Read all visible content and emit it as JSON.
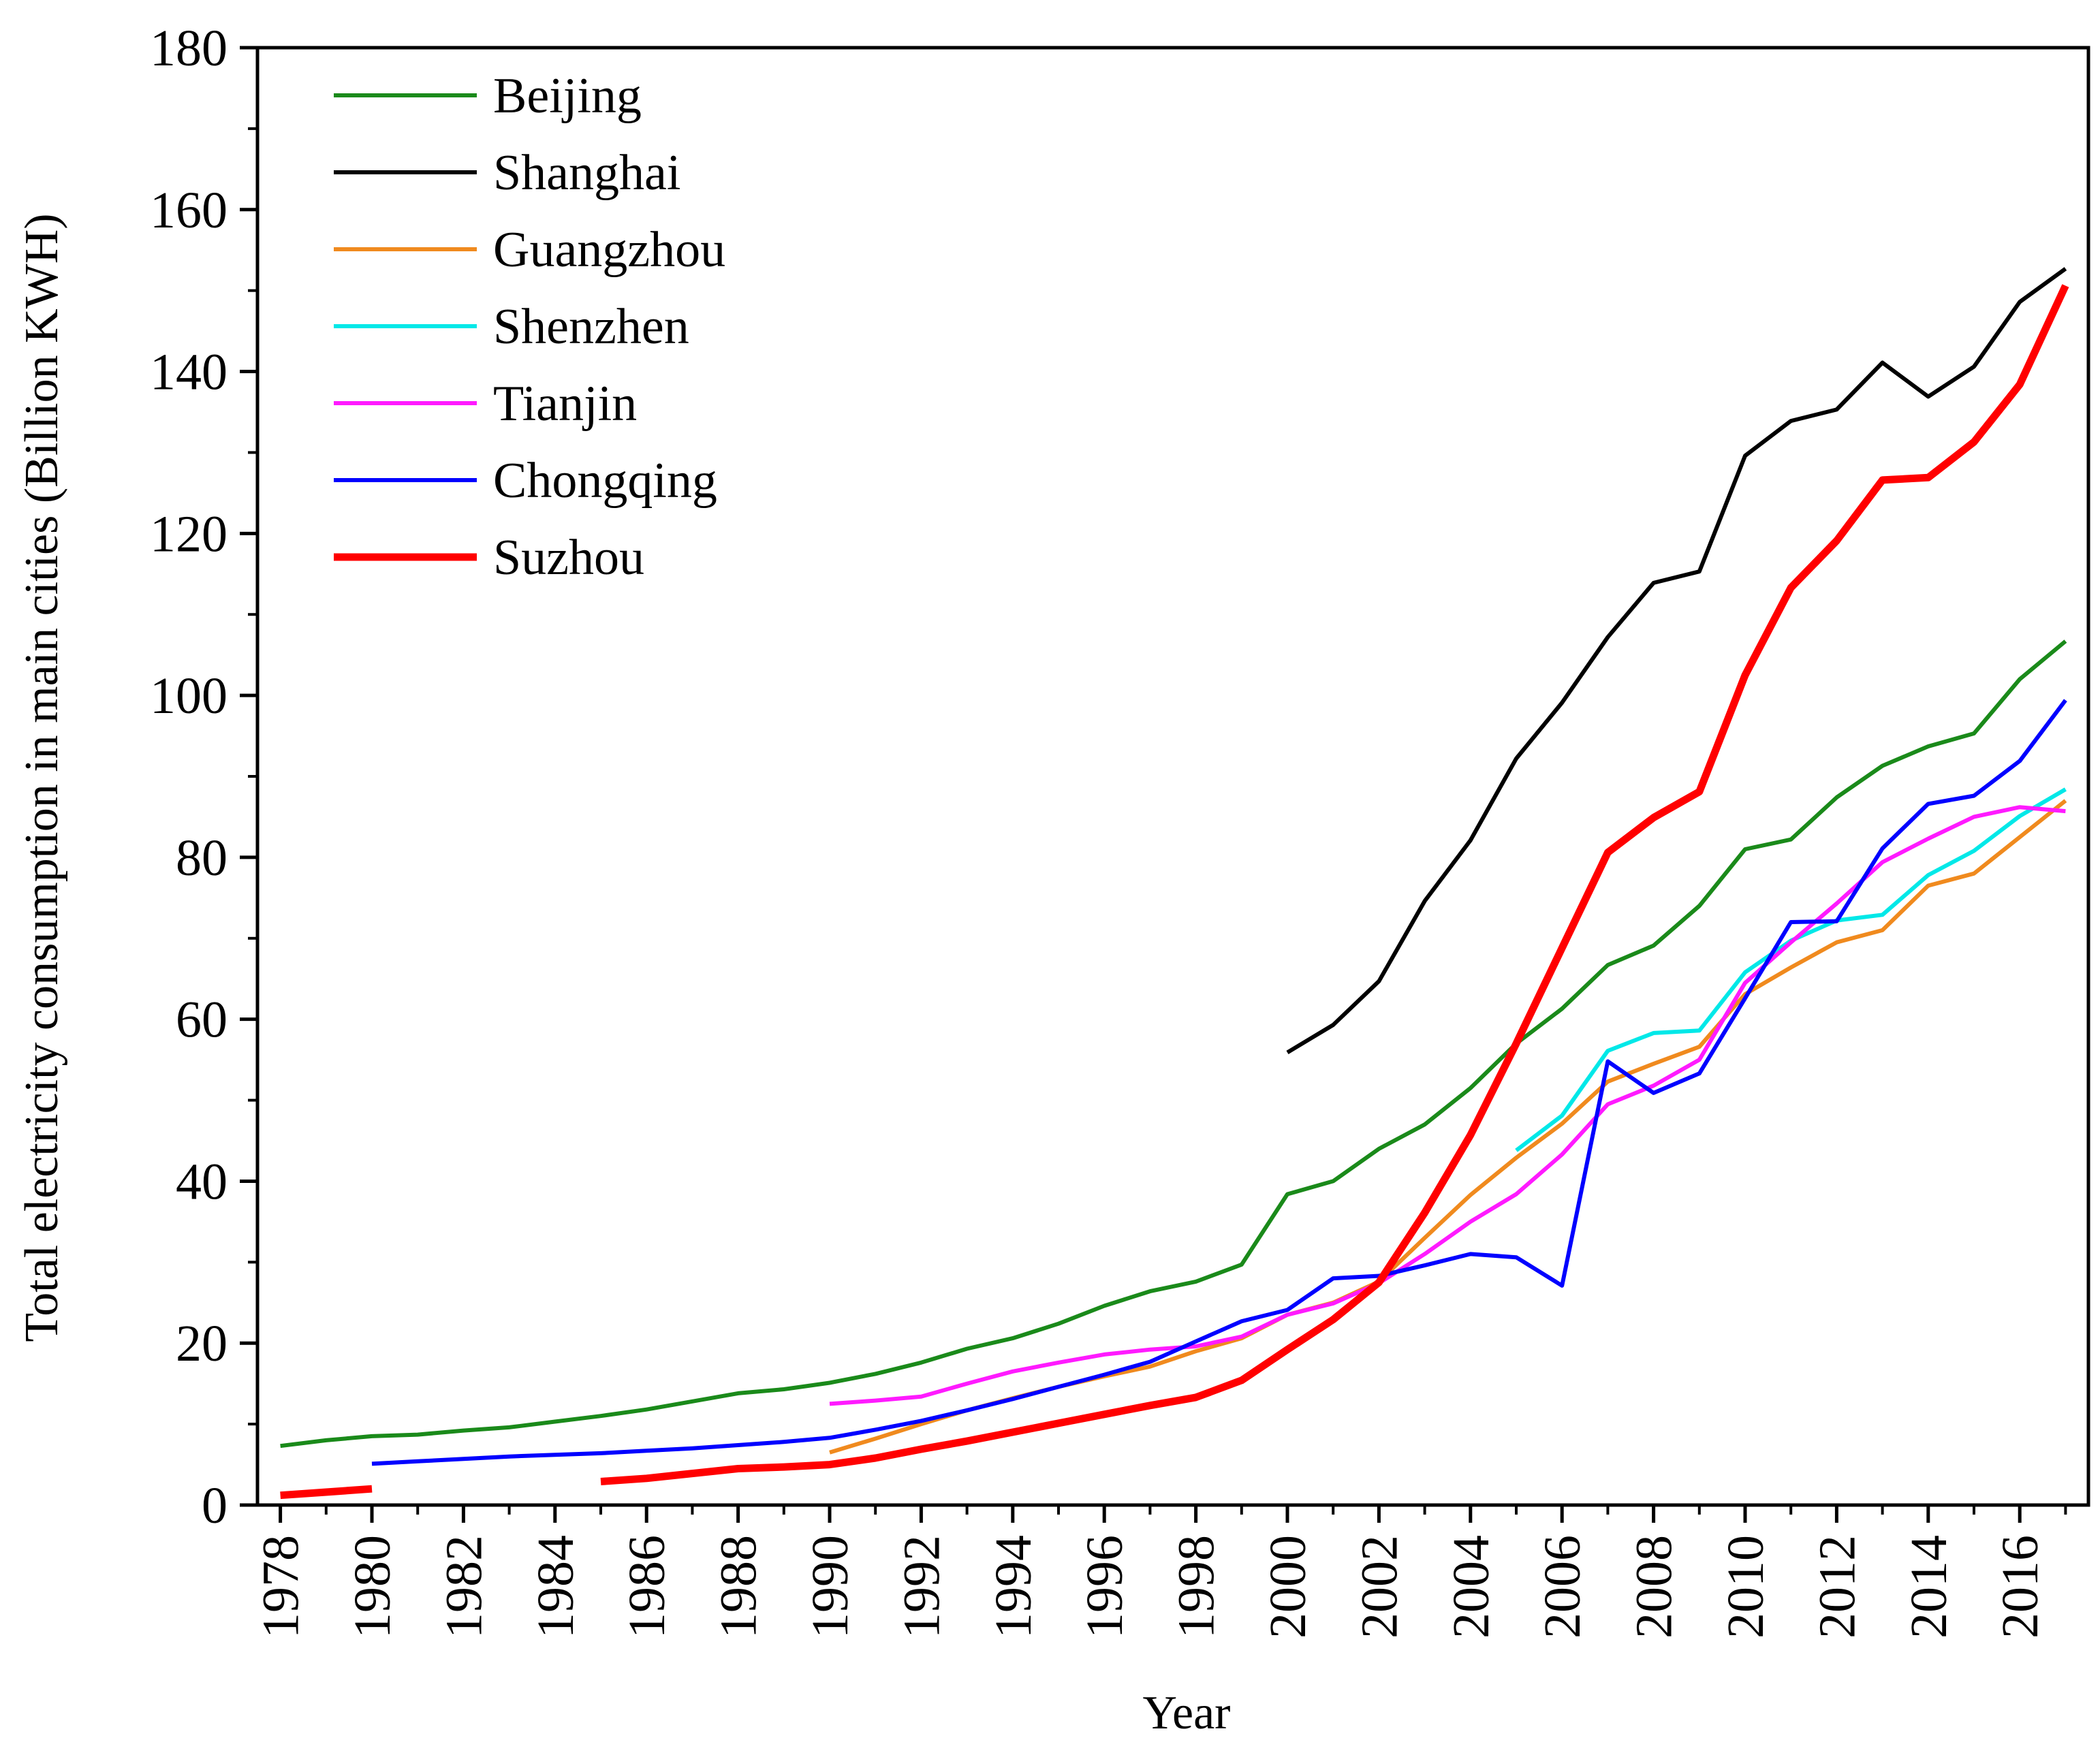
{
  "chart_data": {
    "type": "line",
    "xlabel": "Year",
    "ylabel": "Total electricity consumption in main cities (Billion KWH)",
    "xlim": [
      1977.5,
      2017.5
    ],
    "ylim": [
      0,
      180
    ],
    "x_ticks": [
      1978,
      1980,
      1982,
      1984,
      1986,
      1988,
      1990,
      1992,
      1994,
      1996,
      1998,
      2000,
      2002,
      2004,
      2006,
      2008,
      2010,
      2012,
      2014,
      2016
    ],
    "y_ticks": [
      0,
      20,
      40,
      60,
      80,
      100,
      120,
      140,
      160,
      180
    ],
    "grid": false,
    "legend_position": "top-left",
    "series": [
      {
        "name": "Beijing",
        "color": "#1a8a1a",
        "points": [
          [
            1978,
            7.3
          ],
          [
            1979,
            8.0
          ],
          [
            1980,
            8.5
          ],
          [
            1981,
            8.7
          ],
          [
            1982,
            9.2
          ],
          [
            1983,
            9.6
          ],
          [
            1984,
            10.3
          ],
          [
            1985,
            11.0
          ],
          [
            1986,
            11.8
          ],
          [
            1987,
            12.8
          ],
          [
            1988,
            13.8
          ],
          [
            1989,
            14.3
          ],
          [
            1990,
            15.1
          ],
          [
            1991,
            16.2
          ],
          [
            1992,
            17.6
          ],
          [
            1993,
            19.3
          ],
          [
            1994,
            20.6
          ],
          [
            1995,
            22.4
          ],
          [
            1996,
            24.6
          ],
          [
            1997,
            26.4
          ],
          [
            1998,
            27.6
          ],
          [
            1999,
            29.7
          ],
          [
            2000,
            38.4
          ],
          [
            2001,
            40.0
          ],
          [
            2002,
            44.0
          ],
          [
            2003,
            47.0
          ],
          [
            2004,
            51.5
          ],
          [
            2005,
            57.0
          ],
          [
            2006,
            61.3
          ],
          [
            2007,
            66.7
          ],
          [
            2008,
            69.1
          ],
          [
            2009,
            74.0
          ],
          [
            2010,
            81.0
          ],
          [
            2011,
            82.2
          ],
          [
            2012,
            87.4
          ],
          [
            2013,
            91.3
          ],
          [
            2014,
            93.7
          ],
          [
            2015,
            95.3
          ],
          [
            2016,
            102.0
          ],
          [
            2017,
            106.7
          ]
        ]
      },
      {
        "name": "Shanghai",
        "color": "#000000",
        "points": [
          [
            2000,
            55.9
          ],
          [
            2001,
            59.3
          ],
          [
            2002,
            64.7
          ],
          [
            2003,
            74.6
          ],
          [
            2004,
            82.1
          ],
          [
            2005,
            92.2
          ],
          [
            2006,
            99.1
          ],
          [
            2007,
            107.2
          ],
          [
            2008,
            113.9
          ],
          [
            2009,
            115.3
          ],
          [
            2010,
            129.6
          ],
          [
            2011,
            133.9
          ],
          [
            2012,
            135.3
          ],
          [
            2013,
            141.1
          ],
          [
            2014,
            136.9
          ],
          [
            2015,
            140.6
          ],
          [
            2016,
            148.6
          ],
          [
            2017,
            152.7
          ]
        ]
      },
      {
        "name": "Guangzhou",
        "color": "#f08a1e",
        "points": [
          [
            1990,
            6.5
          ],
          [
            1991,
            8.2
          ],
          [
            1992,
            10.0
          ],
          [
            1993,
            11.7
          ],
          [
            1994,
            13.2
          ],
          [
            1995,
            14.6
          ],
          [
            1996,
            15.9
          ],
          [
            1997,
            17.1
          ],
          [
            1998,
            19.0
          ],
          [
            1999,
            20.6
          ],
          [
            2000,
            23.5
          ],
          [
            2001,
            25.0
          ],
          [
            2002,
            27.6
          ],
          [
            2003,
            33.0
          ],
          [
            2004,
            38.3
          ],
          [
            2005,
            42.9
          ],
          [
            2006,
            47.1
          ],
          [
            2007,
            52.3
          ],
          [
            2008,
            54.5
          ],
          [
            2009,
            56.6
          ],
          [
            2010,
            63.1
          ],
          [
            2011,
            66.4
          ],
          [
            2012,
            69.5
          ],
          [
            2013,
            71.0
          ],
          [
            2014,
            76.5
          ],
          [
            2015,
            78.0
          ],
          [
            2016,
            82.5
          ],
          [
            2017,
            87.0
          ]
        ]
      },
      {
        "name": "Shenzhen",
        "color": "#00e8e8",
        "points": [
          [
            2005,
            43.8
          ],
          [
            2006,
            48.1
          ],
          [
            2007,
            56.1
          ],
          [
            2008,
            58.3
          ],
          [
            2009,
            58.6
          ],
          [
            2010,
            65.8
          ],
          [
            2011,
            69.7
          ],
          [
            2012,
            72.2
          ],
          [
            2013,
            72.9
          ],
          [
            2014,
            77.8
          ],
          [
            2015,
            80.8
          ],
          [
            2016,
            85.1
          ],
          [
            2017,
            88.4
          ]
        ]
      },
      {
        "name": "Tianjin",
        "color": "#ff1aff",
        "points": [
          [
            1990,
            12.5
          ],
          [
            1991,
            12.9
          ],
          [
            1992,
            13.4
          ],
          [
            1993,
            15.0
          ],
          [
            1994,
            16.5
          ],
          [
            1995,
            17.6
          ],
          [
            1996,
            18.6
          ],
          [
            1997,
            19.2
          ],
          [
            1998,
            19.6
          ],
          [
            1999,
            20.8
          ],
          [
            2000,
            23.5
          ],
          [
            2001,
            24.9
          ],
          [
            2002,
            27.4
          ],
          [
            2003,
            31.0
          ],
          [
            2004,
            35.0
          ],
          [
            2005,
            38.4
          ],
          [
            2006,
            43.3
          ],
          [
            2007,
            49.5
          ],
          [
            2008,
            51.8
          ],
          [
            2009,
            55.0
          ],
          [
            2010,
            64.5
          ],
          [
            2011,
            69.5
          ],
          [
            2012,
            74.3
          ],
          [
            2013,
            79.4
          ],
          [
            2014,
            82.3
          ],
          [
            2015,
            85.0
          ],
          [
            2016,
            86.2
          ],
          [
            2017,
            85.7
          ]
        ]
      },
      {
        "name": "Chongqing",
        "color": "#0000ff",
        "points": [
          [
            1980,
            5.1
          ],
          [
            1981,
            5.4
          ],
          [
            1982,
            5.7
          ],
          [
            1983,
            6.0
          ],
          [
            1984,
            6.2
          ],
          [
            1985,
            6.4
          ],
          [
            1986,
            6.7
          ],
          [
            1987,
            7.0
          ],
          [
            1988,
            7.4
          ],
          [
            1989,
            7.8
          ],
          [
            1990,
            8.3
          ],
          [
            1991,
            9.3
          ],
          [
            1992,
            10.4
          ],
          [
            1993,
            11.7
          ],
          [
            1994,
            13.1
          ],
          [
            1995,
            14.6
          ],
          [
            1996,
            16.1
          ],
          [
            1997,
            17.7
          ],
          [
            1998,
            20.2
          ],
          [
            1999,
            22.7
          ],
          [
            2000,
            24.1
          ],
          [
            2001,
            28.0
          ],
          [
            2002,
            28.3
          ],
          [
            2003,
            29.6
          ],
          [
            2004,
            31.0
          ],
          [
            2005,
            30.6
          ],
          [
            2006,
            27.1
          ],
          [
            2007,
            54.8
          ],
          [
            2008,
            50.9
          ],
          [
            2009,
            53.3
          ],
          [
            2010,
            62.6
          ],
          [
            2011,
            72.0
          ],
          [
            2012,
            72.1
          ],
          [
            2013,
            81.1
          ],
          [
            2014,
            86.6
          ],
          [
            2015,
            87.6
          ],
          [
            2016,
            91.9
          ],
          [
            2017,
            99.4
          ]
        ]
      },
      {
        "name": "Suzhou",
        "color": "#ff0000",
        "segments": [
          [
            [
              1978,
              1.2
            ],
            [
              1979,
              1.6
            ],
            [
              1980,
              2.0
            ]
          ],
          [
            [
              1985,
              2.9
            ],
            [
              1986,
              3.3
            ],
            [
              1987,
              3.9
            ],
            [
              1988,
              4.5
            ],
            [
              1989,
              4.7
            ],
            [
              1990,
              5.0
            ],
            [
              1991,
              5.8
            ],
            [
              1992,
              6.9
            ],
            [
              1993,
              7.9
            ],
            [
              1994,
              9.0
            ],
            [
              1995,
              10.1
            ],
            [
              1996,
              11.2
            ],
            [
              1997,
              12.3
            ],
            [
              1998,
              13.3
            ],
            [
              1999,
              15.4
            ],
            [
              2000,
              19.2
            ],
            [
              2001,
              22.9
            ],
            [
              2002,
              27.5
            ],
            [
              2003,
              36.1
            ],
            [
              2004,
              45.7
            ],
            [
              2005,
              57.0
            ],
            [
              2006,
              68.8
            ],
            [
              2007,
              80.6
            ],
            [
              2008,
              84.9
            ],
            [
              2009,
              88.1
            ],
            [
              2010,
              102.5
            ],
            [
              2011,
              113.3
            ],
            [
              2012,
              119.1
            ],
            [
              2013,
              126.6
            ],
            [
              2014,
              126.9
            ],
            [
              2015,
              131.3
            ],
            [
              2016,
              138.4
            ],
            [
              2017,
              150.6
            ]
          ]
        ]
      }
    ]
  }
}
